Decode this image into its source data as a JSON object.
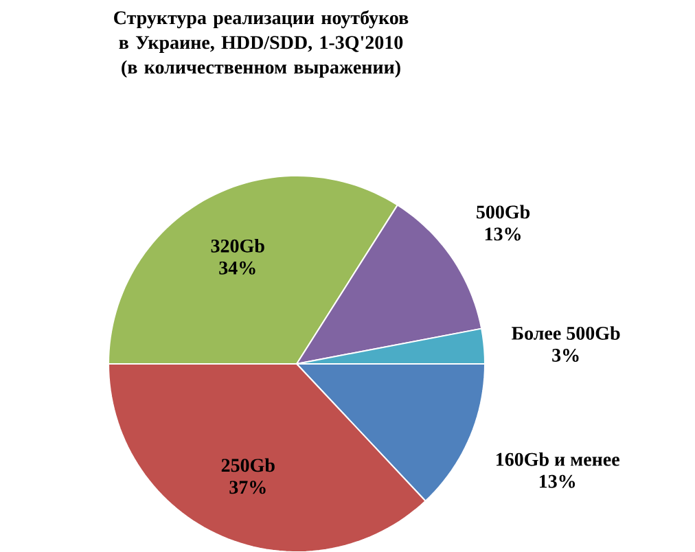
{
  "chart_data": {
    "type": "pie",
    "title": "Структура реализации ноутбуков в Украине, HDD/SDD, 1-3Q'2010 (в количественном выражении)",
    "categories": [
      "160Gb и менее",
      "250Gb",
      "320Gb",
      "500Gb",
      "Более 500Gb"
    ],
    "values": [
      13,
      37,
      34,
      13,
      3
    ],
    "value_labels": [
      "13%",
      "37%",
      "34%",
      "13%",
      "3%"
    ],
    "colors": [
      "#4f81bd",
      "#c0504d",
      "#9bbb59",
      "#8064a2",
      "#4bacc6"
    ]
  }
}
